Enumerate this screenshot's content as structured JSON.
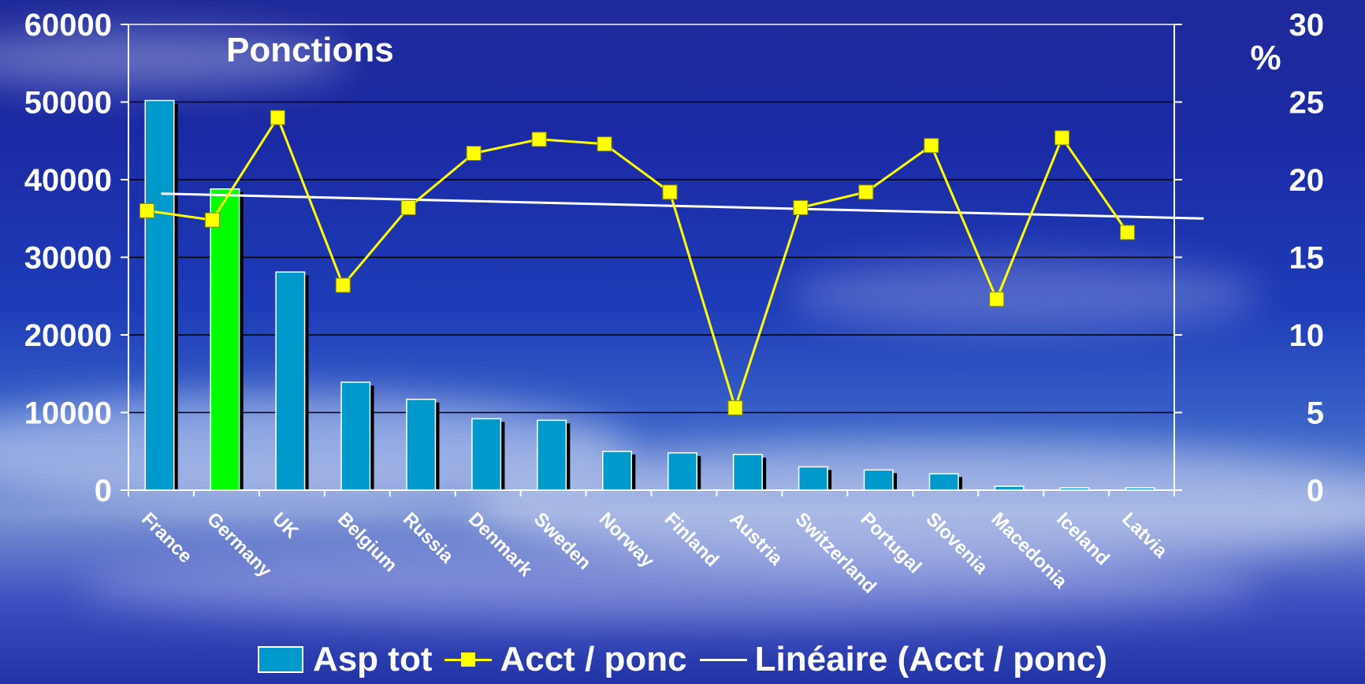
{
  "chart_data": {
    "type": "bar",
    "title": "Ponctions",
    "y2_unit_label": "%",
    "categories": [
      "France",
      "Germany",
      "UK",
      "Belgium",
      "Russia",
      "Denmark",
      "Sweden",
      "Norway",
      "Finland",
      "Austria",
      "Switzerland",
      "Portugal",
      "Slovenia",
      "Macedonia",
      "Iceland",
      "Latvia"
    ],
    "series": [
      {
        "name": "Asp tot",
        "kind": "bar",
        "axis": "left",
        "color": "#0099cc",
        "highlight": {
          "category": "Germany",
          "color": "#00ff00"
        },
        "values": [
          50200,
          38800,
          28100,
          13900,
          11700,
          9200,
          9000,
          5000,
          4800,
          4600,
          3000,
          2600,
          2100,
          500,
          300,
          300
        ]
      },
      {
        "name": "Acct / ponc",
        "kind": "line",
        "axis": "right",
        "color": "#ffff00",
        "marker": "square",
        "values": [
          18.0,
          17.4,
          24.0,
          13.2,
          18.2,
          21.7,
          22.6,
          22.3,
          19.2,
          5.3,
          18.2,
          19.2,
          22.2,
          12.3,
          22.7,
          16.6
        ]
      },
      {
        "name": "Linéaire (Acct / ponc)",
        "kind": "trendline",
        "axis": "right",
        "color": "#ffffff",
        "start": 19.1,
        "end": 17.5
      }
    ],
    "y_ticks": [
      "0",
      "10000",
      "20000",
      "30000",
      "40000",
      "50000",
      "60000"
    ],
    "y2_ticks": [
      "0",
      "5",
      "10",
      "15",
      "20",
      "25",
      "30"
    ],
    "ylim": [
      0,
      60000
    ],
    "y2lim": [
      0,
      30
    ],
    "grid": true,
    "legend_position": "bottom"
  }
}
